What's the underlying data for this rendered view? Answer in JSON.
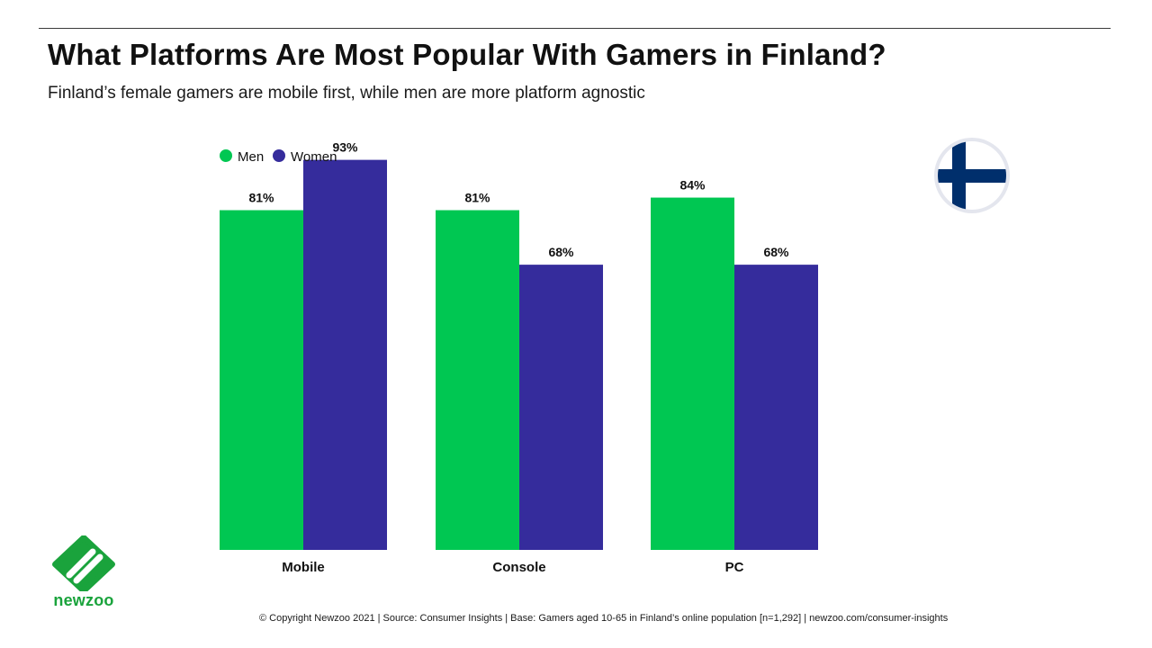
{
  "header": {
    "title": "What Platforms Are Most Popular With Gamers in Finland?",
    "subtitle": "Finland’s female gamers are mobile first, while men are more platform agnostic"
  },
  "colors": {
    "men": "#00c752",
    "women": "#352c9c",
    "flag_blue": "#002f6c",
    "logo_green": "#1aa33c"
  },
  "chart_data": {
    "type": "bar",
    "categories": [
      "Mobile",
      "Console",
      "PC"
    ],
    "series": [
      {
        "name": "Men",
        "values": [
          81,
          81,
          84
        ],
        "labels": [
          "81%",
          "81%",
          "84%"
        ]
      },
      {
        "name": "Women",
        "values": [
          93,
          68,
          68
        ],
        "labels": [
          "93%",
          "68%",
          "68%"
        ]
      }
    ],
    "ylim": [
      0,
      100
    ],
    "grid": false,
    "legend": "top-left"
  },
  "brand": {
    "name": "newzoo"
  },
  "footer": {
    "text": "© Copyright Newzoo 2021 | Source: Consumer Insights | Base: Gamers aged 10-65 in Finland’s online population [n=1,292] | newzoo.com/consumer-insights"
  }
}
